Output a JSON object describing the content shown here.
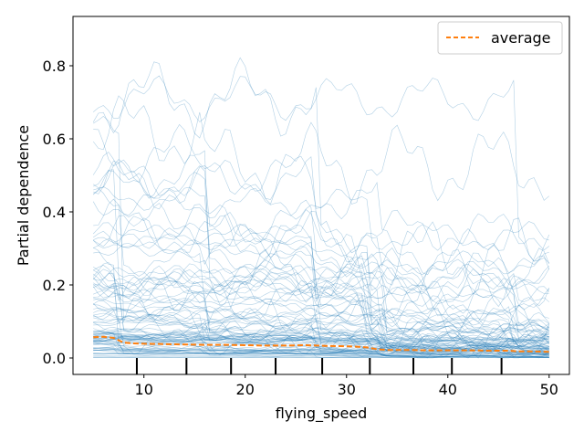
{
  "chart_data": {
    "type": "line",
    "title": "",
    "xlabel": "flying_speed",
    "ylabel": "Partial dependence",
    "xlim": [
      3.0,
      52.0
    ],
    "ylim": [
      -0.045,
      0.935
    ],
    "x_ticks": [
      10,
      20,
      30,
      40,
      50
    ],
    "y_ticks": [
      0.0,
      0.2,
      0.4,
      0.6,
      0.8
    ],
    "x_tick_labels": [
      "10",
      "20",
      "30",
      "40",
      "50"
    ],
    "y_tick_labels": [
      "0.0",
      "0.2",
      "0.4",
      "0.6",
      "0.8"
    ],
    "legend": {
      "position": "upper right",
      "entries": [
        "average"
      ]
    },
    "individual_series": {
      "color": "#1f77b4",
      "style": "thin solid",
      "count": 100,
      "x_range": [
        5,
        50
      ]
    },
    "series": [
      {
        "name": "average",
        "color": "#ff7f0e",
        "style": "dashed",
        "x": [
          5,
          6,
          7,
          8,
          9,
          10,
          12,
          14,
          16,
          18,
          20,
          22,
          24,
          26,
          28,
          30,
          31,
          32,
          33,
          34,
          36,
          38,
          40,
          42,
          44,
          46,
          47,
          48,
          50
        ],
        "values": [
          0.057,
          0.058,
          0.055,
          0.042,
          0.04,
          0.039,
          0.038,
          0.037,
          0.036,
          0.036,
          0.035,
          0.034,
          0.034,
          0.035,
          0.033,
          0.032,
          0.031,
          0.029,
          0.024,
          0.022,
          0.022,
          0.021,
          0.021,
          0.021,
          0.02,
          0.02,
          0.018,
          0.018,
          0.017
        ]
      }
    ],
    "rug_x": [
      9.3,
      14.2,
      18.6,
      23.0,
      27.6,
      32.3,
      36.6,
      40.4,
      45.3
    ]
  }
}
